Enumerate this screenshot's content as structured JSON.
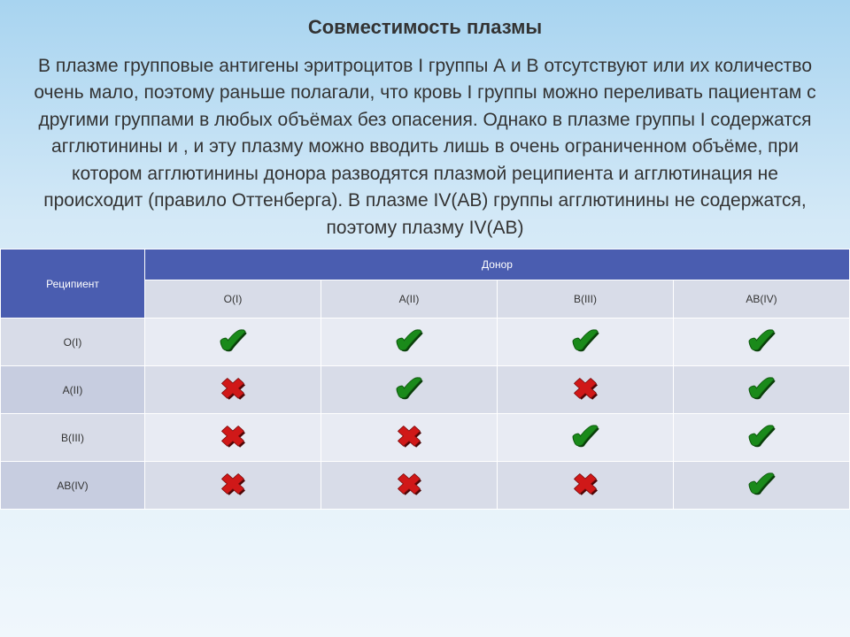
{
  "title": {
    "text": "Совместимость плазмы",
    "fontsize": 22
  },
  "body": {
    "text": "В плазме групповые антигены эритроцитов I группы А и В отсутствуют или их количество очень мало, поэтому раньше полагали, что кровь I группы можно переливать пациентам с другими группами в любых объёмах без опасения. Однако в плазме группы I содержатся агглютинины    и  , и эту плазму можно вводить лишь в очень ограниченном объёме, при котором агглютинины донора разводятся плазмой реципиента и агглютинация не происходит (правило Оттенберга). В плазме IV(AB) группы агглютинины не содержатся, поэтому плазму IV(AB)",
    "fontsize": 21
  },
  "table": {
    "header_recipient": "Реципиент",
    "header_donor": "Донор",
    "donor_labels": [
      "O(I)",
      "A(II)",
      "B(III)",
      "AB(IV)"
    ],
    "recipient_labels": [
      "O(I)",
      "A(II)",
      "B(III)",
      "AB(IV)"
    ],
    "matrix": [
      [
        "check",
        "check",
        "check",
        "check"
      ],
      [
        "cross",
        "check",
        "cross",
        "check"
      ],
      [
        "cross",
        "cross",
        "check",
        "check"
      ],
      [
        "cross",
        "cross",
        "cross",
        "check"
      ]
    ],
    "colors": {
      "header_bg": "#4a5db0",
      "header_fg": "#ffffff",
      "sub_bg": "#d8dce8",
      "cell_bg_even": "#e8ebf3",
      "cell_bg_odd": "#d8dce8",
      "check_color": "#1a8a1a",
      "cross_color": "#d01818",
      "border": "#ffffff"
    },
    "col_widths_pct": [
      17,
      20.75,
      20.75,
      20.75,
      20.75
    ],
    "label_fontsize": 12
  },
  "glyphs": {
    "check": "✔",
    "cross": "✖"
  }
}
